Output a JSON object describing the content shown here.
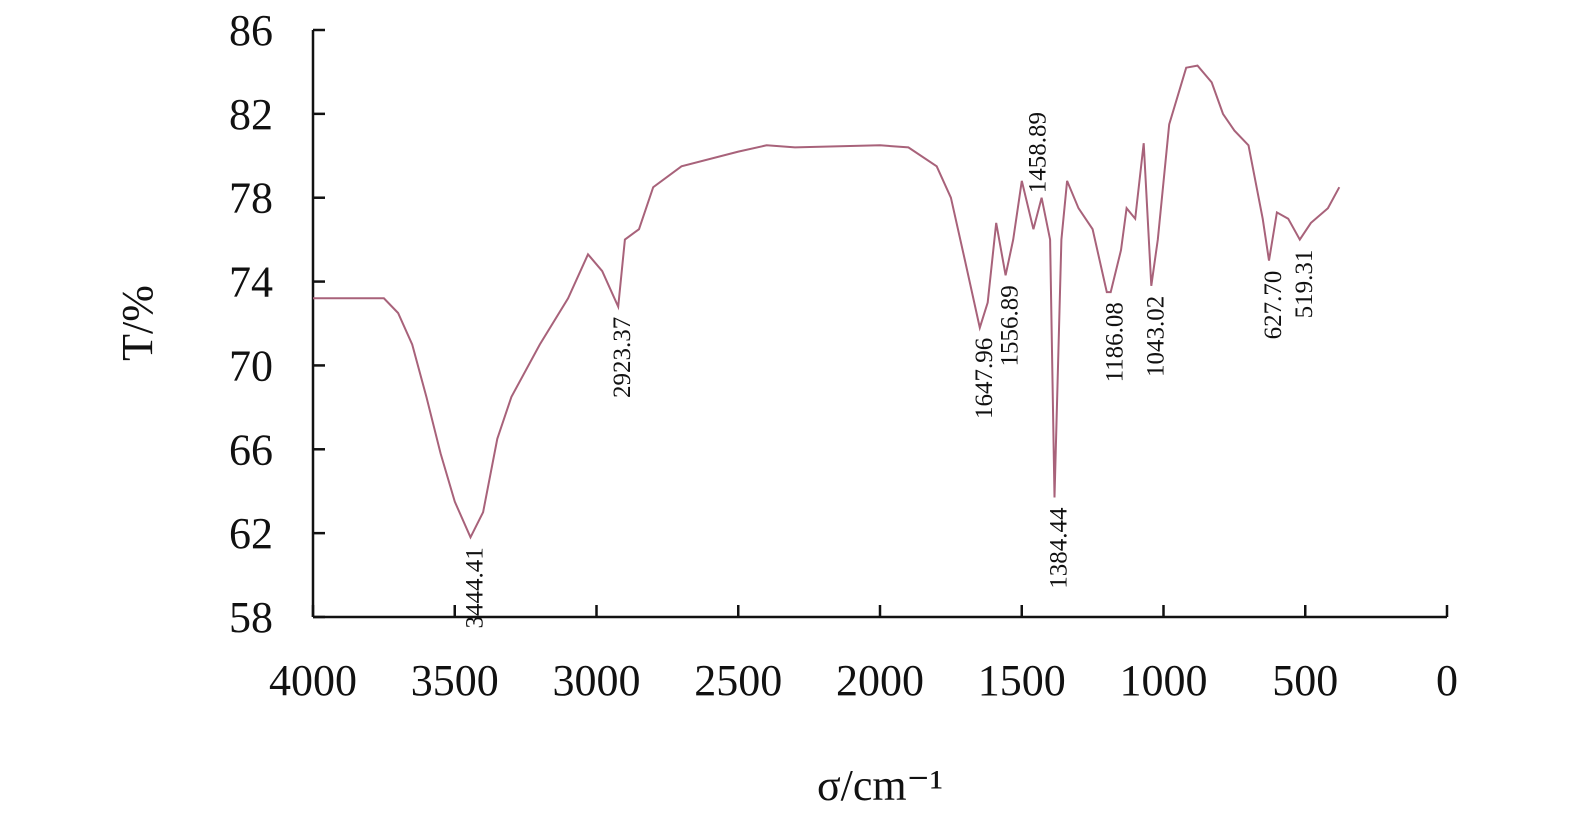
{
  "chart_data": {
    "type": "line",
    "x_label": "σ/cm⁻¹",
    "y_label": "T/%",
    "xlim": [
      4000,
      0
    ],
    "xticks": [
      4000,
      3500,
      3000,
      2500,
      2000,
      1500,
      1000,
      500,
      0
    ],
    "ylim": [
      58,
      86
    ],
    "yticks": [
      58,
      62,
      66,
      70,
      74,
      78,
      82,
      86
    ],
    "series": [
      {
        "name": "spectrum",
        "color": "#a8627a",
        "x": [
          4000,
          3850,
          3750,
          3700,
          3650,
          3600,
          3550,
          3500,
          3444.41,
          3400,
          3350,
          3300,
          3200,
          3100,
          3030,
          2980,
          2923.37,
          2900,
          2850,
          2800,
          2700,
          2500,
          2400,
          2300,
          2000,
          1900,
          1800,
          1750,
          1700,
          1647.96,
          1620,
          1590,
          1556.89,
          1530,
          1500,
          1458.89,
          1430,
          1400,
          1384.44,
          1360,
          1340,
          1300,
          1250,
          1200,
          1186.08,
          1150,
          1130,
          1100,
          1070,
          1043.02,
          1020,
          980,
          920,
          880,
          830,
          790,
          750,
          700,
          650,
          627.7,
          600,
          560,
          519.31,
          480,
          420,
          380
        ],
        "values": [
          73.2,
          73.2,
          73.2,
          72.5,
          71,
          68.5,
          65.8,
          63.5,
          61.8,
          63,
          66.5,
          68.5,
          71,
          73.2,
          75.3,
          74.5,
          72.8,
          76,
          76.5,
          78.5,
          79.5,
          80.2,
          80.5,
          80.4,
          80.5,
          80.4,
          79.5,
          78,
          75,
          71.8,
          73,
          76.8,
          74.3,
          76,
          78.8,
          76.5,
          78,
          76,
          63.7,
          76,
          78.8,
          77.5,
          76.5,
          73.5,
          73.5,
          75.5,
          77.5,
          77,
          80.6,
          73.8,
          76,
          81.5,
          84.2,
          84.3,
          83.5,
          82,
          81.2,
          80.5,
          77,
          75,
          77.3,
          77,
          76,
          76.8,
          77.5,
          78.5
        ]
      }
    ],
    "annotations": [
      {
        "text": "3444.41",
        "x": 3444.41,
        "y": 61.8
      },
      {
        "text": "2923.37",
        "x": 2923.37,
        "y": 72.8
      },
      {
        "text": "1647.96",
        "x": 1647.96,
        "y": 71.8
      },
      {
        "text": "1556.89",
        "x": 1556.89,
        "y": 74.3
      },
      {
        "text": "1458.89",
        "x": 1458.89,
        "y": 76.5,
        "placement": "above"
      },
      {
        "text": "1384.44",
        "x": 1384.44,
        "y": 63.7
      },
      {
        "text": "1186.08",
        "x": 1186.08,
        "y": 73.5
      },
      {
        "text": "1043.02",
        "x": 1043.02,
        "y": 73.8
      },
      {
        "text": "627.70",
        "x": 627.7,
        "y": 75
      },
      {
        "text": "519.31",
        "x": 519.31,
        "y": 76
      }
    ]
  }
}
